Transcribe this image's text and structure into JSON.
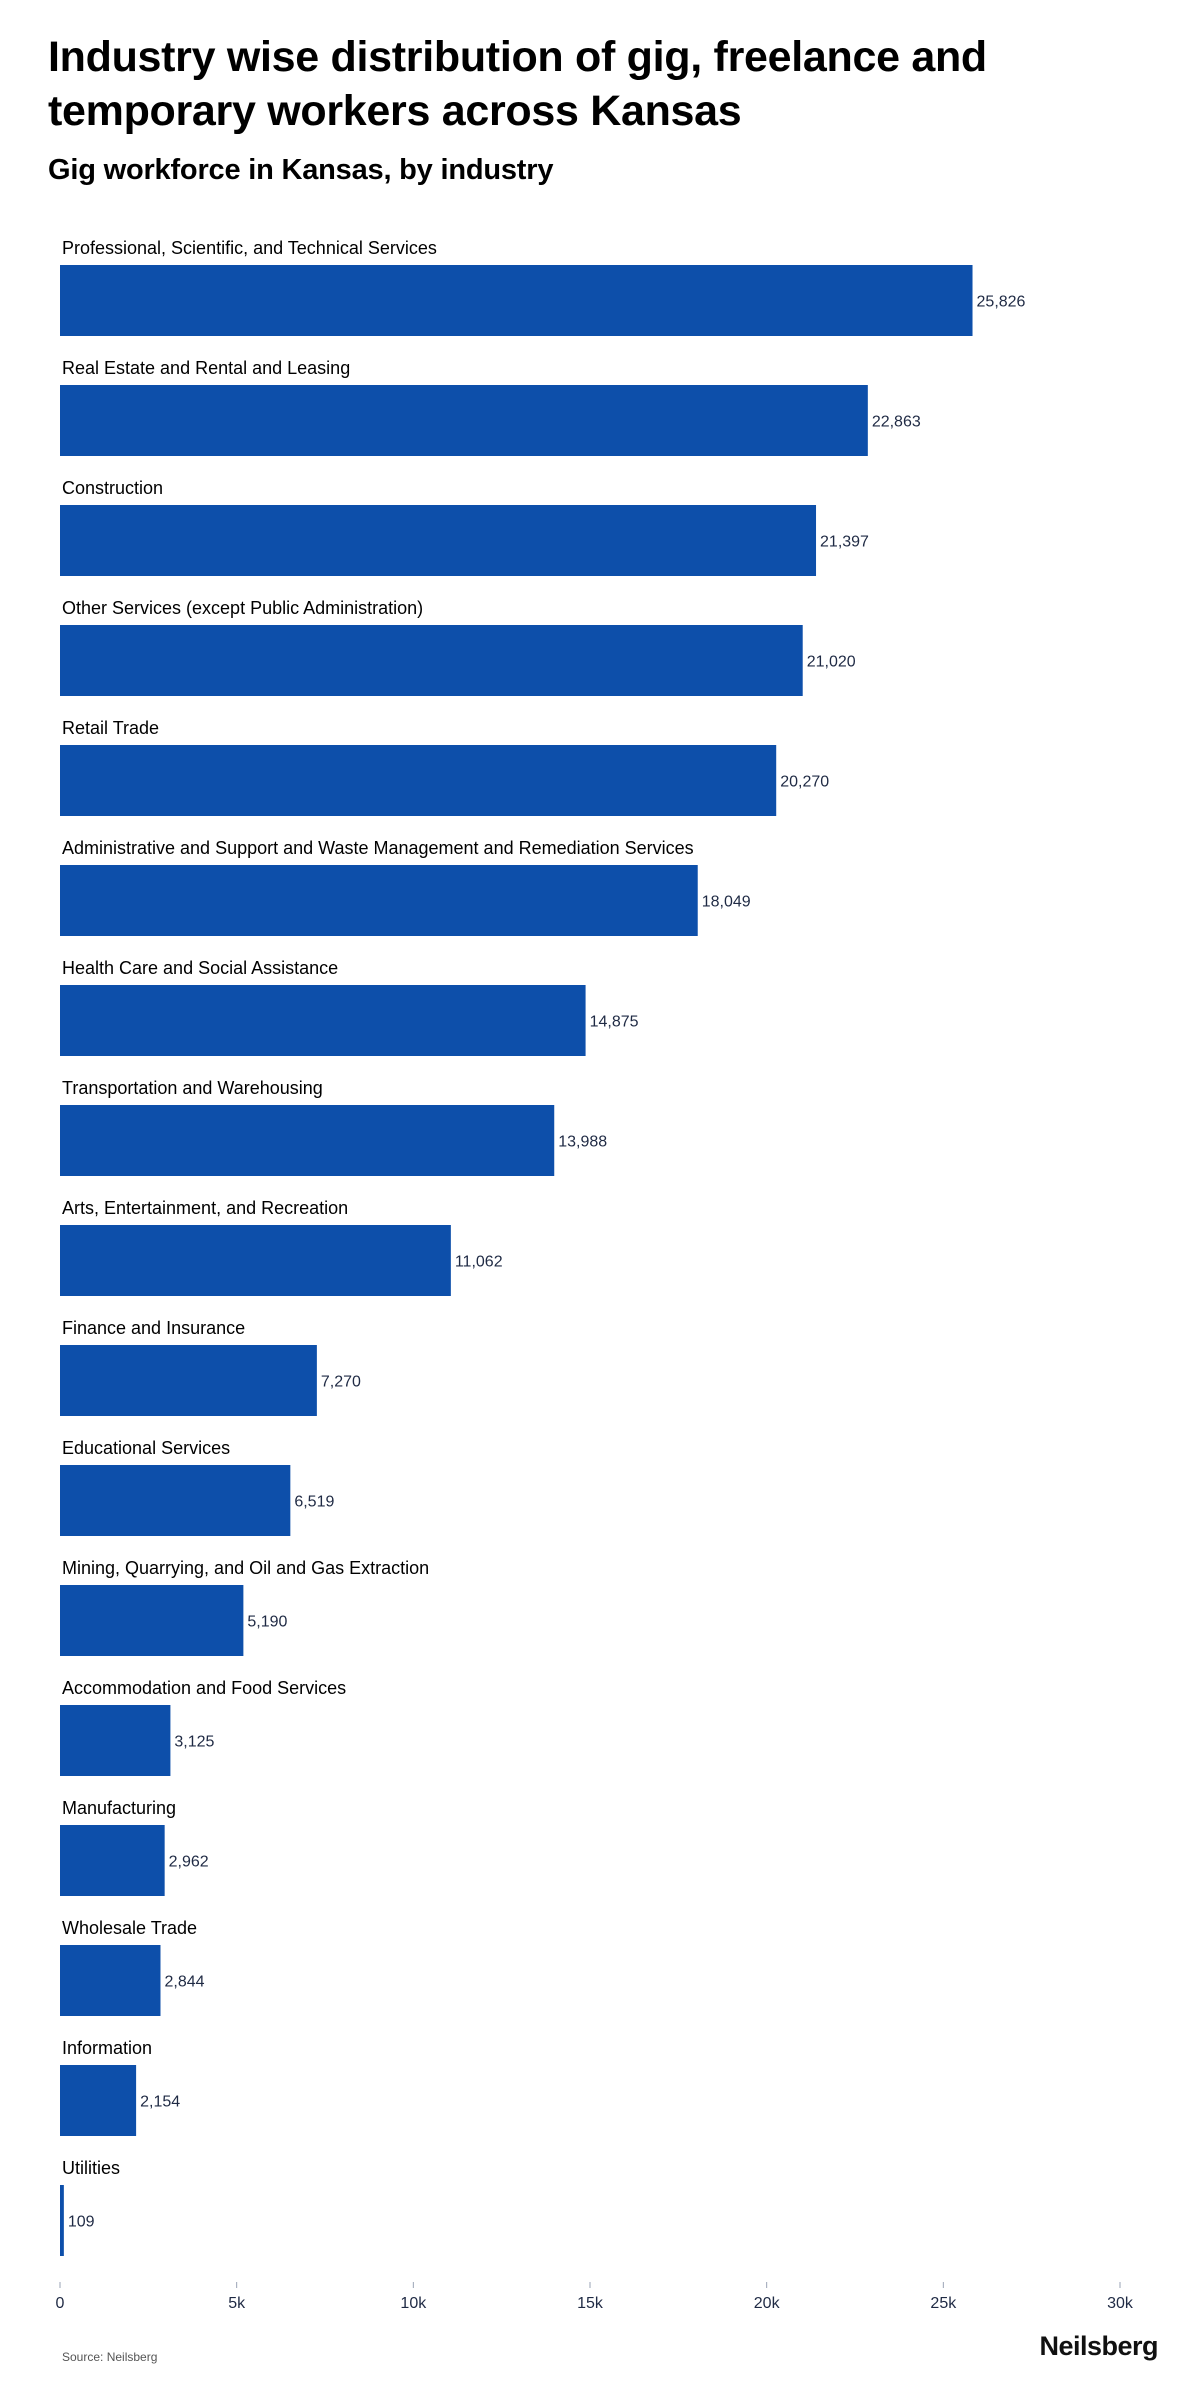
{
  "title": "Industry wise distribution of gig, freelance and temporary workers across Kansas",
  "subtitle": "Gig workforce in Kansas, by industry",
  "source": "Source: Neilsberg",
  "brand": "Neilsberg",
  "colors": {
    "bar": "#0d4faa",
    "value_label": "#1f2a44",
    "category_label": "#000000",
    "axis_tick": "#1f2a44"
  },
  "chart_data": {
    "type": "bar",
    "orientation": "horizontal",
    "categories": [
      "Professional, Scientific, and Technical Services",
      "Real Estate and Rental and Leasing",
      "Construction",
      "Other Services (except Public Administration)",
      "Retail Trade",
      "Administrative and Support and Waste Management and Remediation Services",
      "Health Care and Social Assistance",
      "Transportation and Warehousing",
      "Arts, Entertainment, and Recreation",
      "Finance and Insurance",
      "Educational Services",
      "Mining, Quarrying, and Oil and Gas Extraction",
      "Accommodation and Food Services",
      "Manufacturing",
      "Wholesale Trade",
      "Information",
      "Utilities"
    ],
    "values": [
      25826,
      22863,
      21397,
      21020,
      20270,
      18049,
      14875,
      13988,
      11062,
      7270,
      6519,
      5190,
      3125,
      2962,
      2844,
      2154,
      109
    ],
    "value_labels": [
      "25,826",
      "22,863",
      "21,397",
      "21,020",
      "20,270",
      "18,049",
      "14,875",
      "13,988",
      "11,062",
      "7,270",
      "6,519",
      "5,190",
      "3,125",
      "2,962",
      "2,844",
      "2,154",
      "109"
    ],
    "xlim": [
      0,
      30000
    ],
    "x_ticks": [
      0,
      5000,
      10000,
      15000,
      20000,
      25000,
      30000
    ],
    "x_tick_labels": [
      "0",
      "5k",
      "10k",
      "15k",
      "20k",
      "25k",
      "30k"
    ],
    "grid": false,
    "legend": "none"
  }
}
